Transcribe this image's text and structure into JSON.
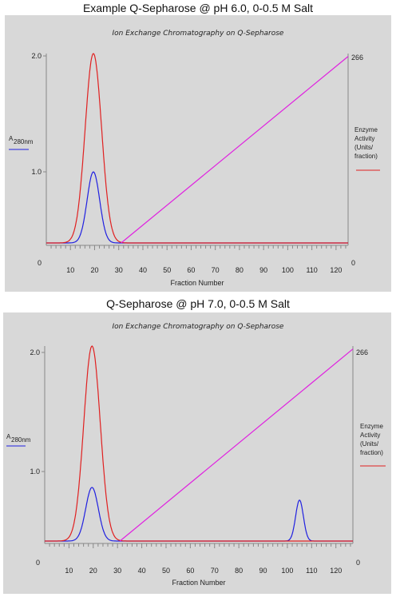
{
  "colors": {
    "background": "#d8d8d8",
    "absorbance": "#2020e0",
    "activity": "#e02020",
    "salt": "#e020e0",
    "axis": "#888888"
  },
  "chart_data": [
    {
      "type": "line",
      "title": "Example Q-Sepharose @ pH 6.0, 0-0.5 M Salt",
      "subtitle": "Ion Exchange Chromatography on Q-Sepharose",
      "xlabel": "Fraction Number",
      "ylabel_left": "A",
      "ylabel_left_sub": "280nm",
      "ylabel_right": [
        "Enzyme",
        "Activity",
        "(Units/",
        "fraction)"
      ],
      "xlim": [
        0,
        125
      ],
      "ylim_left": [
        0,
        2.0
      ],
      "ylim_right": [
        0,
        266
      ],
      "x_ticks": [
        "10",
        "20",
        "30",
        "40",
        "50",
        "60",
        "70",
        "80",
        "90",
        "100",
        "110",
        "120"
      ],
      "y_ticks_left": [
        "0",
        "1.0",
        "2.0"
      ],
      "y_ticks_right": [
        "0",
        "266"
      ],
      "series": [
        {
          "key": "absorbance",
          "axis": "left",
          "baseline": 0,
          "peaks": [
            {
              "center": 19.5,
              "height": 0.75,
              "width": 2.6
            }
          ]
        },
        {
          "key": "activity",
          "axis": "right",
          "baseline": 0,
          "peaks": [
            {
              "center": 19.5,
              "height": 266,
              "width": 3.4
            }
          ]
        },
        {
          "key": "salt",
          "axis": "right",
          "points": [
            [
              31,
              0
            ],
            [
              125,
              262
            ]
          ]
        }
      ]
    },
    {
      "type": "line",
      "title": "Q-Sepharose @ pH 7.0, 0-0.5 M Salt",
      "subtitle": "Ion Exchange Chromatography on Q-Sepharose",
      "xlabel": "Fraction Number",
      "ylabel_left": "A",
      "ylabel_left_sub": "280nm",
      "ylabel_right": [
        "Enzyme",
        "Activity",
        "(Units/",
        "fraction)"
      ],
      "xlim": [
        0,
        127
      ],
      "ylim_left": [
        0,
        2.0
      ],
      "ylim_right": [
        0,
        266
      ],
      "x_ticks": [
        "10",
        "20",
        "30",
        "40",
        "50",
        "60",
        "70",
        "80",
        "90",
        "100",
        "110",
        "120"
      ],
      "y_ticks_left": [
        "0",
        "1.0",
        "2.0"
      ],
      "y_ticks_right": [
        "0",
        "266"
      ],
      "series": [
        {
          "key": "absorbance",
          "axis": "left",
          "baseline": 0,
          "peaks": [
            {
              "center": 19.5,
              "height": 0.55,
              "width": 2.6
            },
            {
              "center": 105,
              "height": 0.42,
              "width": 1.6
            }
          ]
        },
        {
          "key": "activity",
          "axis": "right",
          "baseline": 0,
          "peaks": [
            {
              "center": 19.5,
              "height": 266,
              "width": 3.4
            }
          ]
        },
        {
          "key": "salt",
          "axis": "right",
          "points": [
            [
              31,
              0
            ],
            [
              127,
              262
            ]
          ]
        }
      ]
    }
  ]
}
